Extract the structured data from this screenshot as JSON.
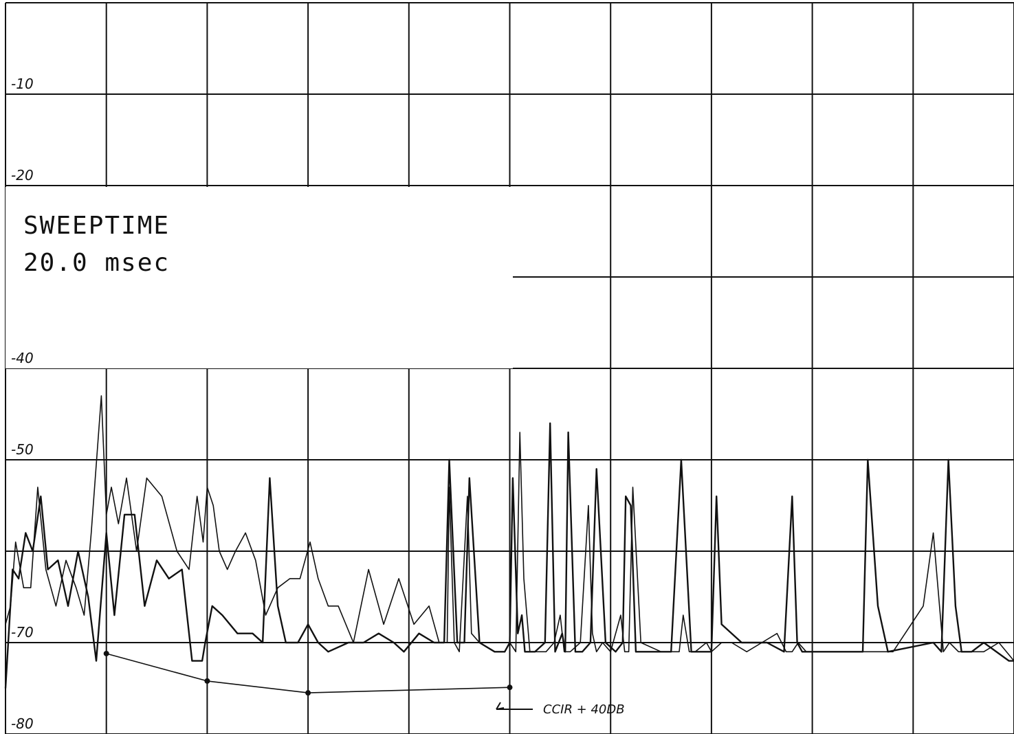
{
  "chart_data": {
    "type": "line",
    "title": "",
    "xlabel": "",
    "ylabel": "",
    "ylim": [
      -80,
      0
    ],
    "xlim": [
      0,
      10
    ],
    "grid": true,
    "y_tick_labels": [
      "-10",
      "-20",
      "-40",
      "-50",
      "-70",
      "-80"
    ],
    "y_tick_values": [
      -10,
      -20,
      -40,
      -50,
      -70,
      -80
    ],
    "annotation_sweeptime": [
      "SWEEPTIME",
      "20.0 msec"
    ],
    "annotation_ccir": "CCIR + 40DB",
    "series": [
      {
        "x": [
          0.0,
          0.07,
          0.13,
          0.2,
          0.27,
          0.35,
          0.42,
          0.52,
          0.62,
          0.72,
          0.82,
          0.9,
          1.0,
          1.08,
          1.18,
          1.28,
          1.38,
          1.5,
          1.62,
          1.75,
          1.85,
          1.95,
          1.98,
          2.05,
          2.15,
          2.3,
          2.45,
          2.55,
          2.62,
          2.7,
          2.78,
          2.9,
          3.0,
          3.1,
          3.2,
          3.4,
          3.55,
          3.7,
          3.85,
          3.95,
          4.1,
          4.25,
          4.35,
          4.4,
          4.48,
          4.55,
          4.6,
          4.7,
          4.85,
          4.95,
          5.0,
          5.03,
          5.08,
          5.12,
          5.15,
          5.25,
          5.35,
          5.4,
          5.45,
          5.52,
          5.55,
          5.58,
          5.65,
          5.72,
          5.8,
          5.86,
          5.95,
          6.05,
          6.12,
          6.15,
          6.2,
          6.25,
          6.3,
          6.4,
          6.6,
          6.7,
          6.8,
          6.9,
          6.95,
          7.0,
          7.05,
          7.1,
          7.3,
          7.55,
          7.72,
          7.8,
          7.85,
          7.9,
          7.95,
          8.0,
          8.2,
          8.35,
          8.5,
          8.55,
          8.65,
          8.75,
          9.2,
          9.28,
          9.35,
          9.42,
          9.48,
          9.58,
          9.7,
          9.95,
          10.0
        ],
        "y": [
          -75,
          -62,
          -63,
          -58,
          -60,
          -54,
          -62,
          -61,
          -66,
          -60,
          -65,
          -72,
          -58,
          -67,
          -56,
          -56,
          -66,
          -61,
          -63,
          -62,
          -72,
          -72,
          -70,
          -66,
          -67,
          -69,
          -69,
          -70,
          -52,
          -66,
          -70,
          -70,
          -68,
          -70,
          -71,
          -70,
          -70,
          -69,
          -70,
          -71,
          -69,
          -70,
          -70,
          -50,
          -70,
          -70,
          -52,
          -70,
          -71,
          -71,
          -70,
          -52,
          -69,
          -67,
          -71,
          -71,
          -70,
          -46,
          -71,
          -69,
          -71,
          -47,
          -71,
          -71,
          -70,
          -51,
          -70,
          -71,
          -70,
          -54,
          -55,
          -71,
          -71,
          -71,
          -71,
          -50,
          -71,
          -71,
          -71,
          -71,
          -54,
          -68,
          -70,
          -70,
          -71,
          -54,
          -70,
          -71,
          -71,
          -71,
          -71,
          -71,
          -71,
          -50,
          -66,
          -71,
          -70,
          -71,
          -50,
          -66,
          -71,
          -71,
          -70,
          -72,
          -72
        ]
      },
      {
        "x": [
          0.0,
          0.05,
          0.1,
          0.18,
          0.25,
          0.32,
          0.4,
          0.5,
          0.6,
          0.7,
          0.78,
          0.85,
          0.95,
          1.0,
          1.05,
          1.12,
          1.2,
          1.3,
          1.4,
          1.55,
          1.7,
          1.82,
          1.9,
          1.96,
          2.0,
          2.06,
          2.12,
          2.2,
          2.28,
          2.38,
          2.48,
          2.58,
          2.7,
          2.82,
          2.92,
          3.02,
          3.1,
          3.2,
          3.3,
          3.45,
          3.6,
          3.75,
          3.9,
          4.05,
          4.2,
          4.3,
          4.38,
          4.4,
          4.45,
          4.5,
          4.58,
          4.62,
          4.7,
          4.85,
          4.95,
          5.0,
          5.06,
          5.1,
          5.14,
          5.2,
          5.28,
          5.32,
          5.36,
          5.44,
          5.5,
          5.54,
          5.6,
          5.7,
          5.78,
          5.82,
          5.86,
          5.92,
          6.0,
          6.1,
          6.14,
          6.18,
          6.22,
          6.3,
          6.5,
          6.68,
          6.72,
          6.78,
          6.84,
          6.95,
          7.0,
          7.1,
          7.2,
          7.35,
          7.5,
          7.65,
          7.74,
          7.8,
          7.86,
          7.94,
          8.05,
          8.2,
          8.35,
          8.45,
          8.52,
          8.6,
          8.7,
          8.8,
          9.1,
          9.2,
          9.3,
          9.36,
          9.45,
          9.55,
          9.7,
          9.85,
          10.0
        ],
        "y": [
          -68,
          -66,
          -59,
          -64,
          -64,
          -53,
          -62,
          -66,
          -61,
          -64,
          -67,
          -58,
          -43,
          -56,
          -53,
          -57,
          -52,
          -60,
          -52,
          -54,
          -60,
          -62,
          -54,
          -59,
          -53,
          -55,
          -60,
          -62,
          -60,
          -58,
          -61,
          -67,
          -64,
          -63,
          -63,
          -59,
          -63,
          -66,
          -66,
          -70,
          -62,
          -68,
          -63,
          -68,
          -66,
          -70,
          -70,
          -53,
          -70,
          -71,
          -54,
          -69,
          -70,
          -71,
          -71,
          -70,
          -71,
          -47,
          -63,
          -71,
          -71,
          -71,
          -71,
          -70,
          -67,
          -71,
          -71,
          -70,
          -55,
          -69,
          -71,
          -70,
          -71,
          -67,
          -71,
          -71,
          -53,
          -70,
          -71,
          -71,
          -67,
          -71,
          -71,
          -70,
          -71,
          -70,
          -70,
          -71,
          -70,
          -69,
          -71,
          -71,
          -70,
          -71,
          -71,
          -71,
          -71,
          -71,
          -71,
          -71,
          -71,
          -71,
          -66,
          -58,
          -71,
          -70,
          -71,
          -71,
          -71,
          -70,
          -72
        ]
      },
      {
        "x": [
          1.0,
          2.0,
          3.0,
          5.0
        ],
        "y": [
          -71.2,
          -74.2,
          -75.5,
          -74.9
        ],
        "markers": true
      }
    ]
  }
}
